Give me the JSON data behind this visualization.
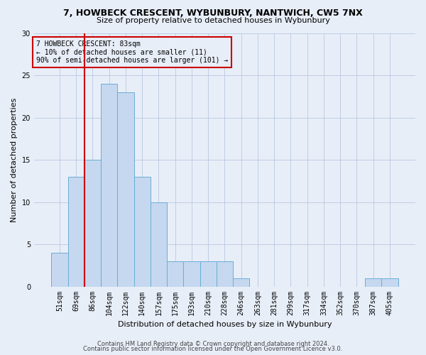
{
  "title1": "7, HOWBECK CRESCENT, WYBUNBURY, NANTWICH, CW5 7NX",
  "title2": "Size of property relative to detached houses in Wybunbury",
  "xlabel": "Distribution of detached houses by size in Wybunbury",
  "ylabel": "Number of detached properties",
  "footer1": "Contains HM Land Registry data © Crown copyright and database right 2024.",
  "footer2": "Contains public sector information licensed under the Open Government Licence v3.0.",
  "annotation_line1": "7 HOWBECK CRESCENT: 83sqm",
  "annotation_line2": "← 10% of detached houses are smaller (11)",
  "annotation_line3": "90% of semi-detached houses are larger (101) →",
  "bar_labels": [
    "51sqm",
    "69sqm",
    "86sqm",
    "104sqm",
    "122sqm",
    "140sqm",
    "157sqm",
    "175sqm",
    "193sqm",
    "210sqm",
    "228sqm",
    "246sqm",
    "263sqm",
    "281sqm",
    "299sqm",
    "317sqm",
    "334sqm",
    "352sqm",
    "370sqm",
    "387sqm",
    "405sqm"
  ],
  "bar_values": [
    4,
    13,
    15,
    24,
    23,
    13,
    10,
    3,
    3,
    3,
    3,
    1,
    0,
    0,
    0,
    0,
    0,
    0,
    0,
    1,
    1
  ],
  "bar_color": "#c5d8f0",
  "bar_edge_color": "#6aadd5",
  "vline_color": "#cc0000",
  "vline_bar_index": 1,
  "annotation_box_color": "#cc0000",
  "background_color": "#e8eef8",
  "ylim": [
    0,
    30
  ],
  "yticks": [
    0,
    5,
    10,
    15,
    20,
    25,
    30
  ],
  "title_fontsize": 9,
  "subtitle_fontsize": 8,
  "xlabel_fontsize": 8,
  "ylabel_fontsize": 8,
  "tick_fontsize": 7,
  "annotation_fontsize": 7,
  "footer_fontsize": 6
}
